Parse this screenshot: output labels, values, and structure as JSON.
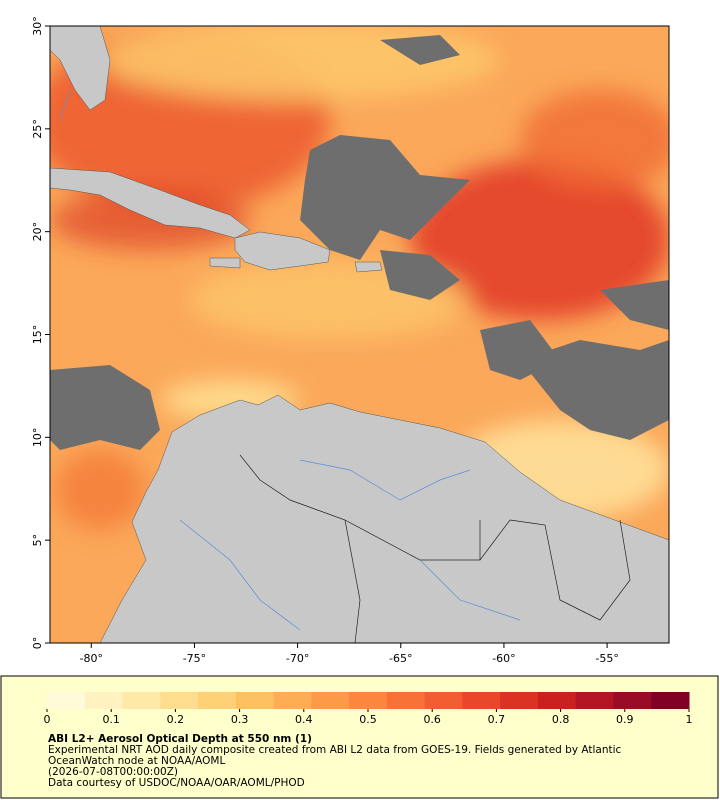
{
  "map": {
    "xlim": [
      -82,
      -52
    ],
    "ylim": [
      0,
      30
    ],
    "xticks": [
      {
        "value": -80,
        "label": "-80°"
      },
      {
        "value": -75,
        "label": "-75°"
      },
      {
        "value": -70,
        "label": "-70°"
      },
      {
        "value": -65,
        "label": "-65°"
      },
      {
        "value": -60,
        "label": "-60°"
      },
      {
        "value": -55,
        "label": "-55°"
      }
    ],
    "yticks": [
      {
        "value": 0,
        "label": "0°"
      },
      {
        "value": 5,
        "label": "5°"
      },
      {
        "value": 10,
        "label": "10°"
      },
      {
        "value": 15,
        "label": "15°"
      },
      {
        "value": 20,
        "label": "20°"
      },
      {
        "value": 25,
        "label": "25°"
      },
      {
        "value": 30,
        "label": "30°"
      }
    ]
  },
  "colorbar": {
    "range": [
      0,
      1
    ],
    "ticks": [
      0,
      0.1,
      0.2,
      0.3,
      0.4,
      0.5,
      0.6,
      0.7,
      0.8,
      0.9,
      1
    ],
    "colors": [
      "#fffbd8",
      "#fff2c0",
      "#ffe9a8",
      "#ffdd8e",
      "#fed176",
      "#fdc160",
      "#fdae52",
      "#fc9a48",
      "#fc8640",
      "#f87238",
      "#f25c31",
      "#ea462a",
      "#dc3224",
      "#ca2020",
      "#b31424",
      "#990b26",
      "#800026"
    ]
  },
  "caption": {
    "title": "ABI L2+ Aerosol Optical Depth at 550 nm (1)",
    "lines": [
      "Experimental NRT AOD daily composite created from ABI L2 data from GOES-19. Fields generated by Atlantic",
      "OceanWatch node at NOAA/AOML",
      "(2026-07-08T00:00:00Z)",
      "Data courtesy of USDOC/NOAA/OAR/AOML/PHOD"
    ]
  }
}
